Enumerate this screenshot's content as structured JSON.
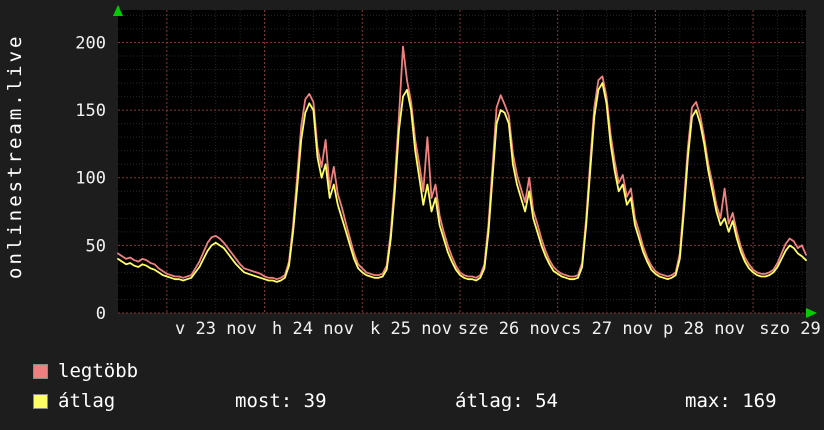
{
  "branding": {
    "vertical_text": "onlinestream.live"
  },
  "colors": {
    "background": "#1d1d1d",
    "plot_background": "#000000",
    "grid_minor": "#272727",
    "grid_major": "#8a3535",
    "text": "#f2f2f2",
    "axis_arrow": "#00cc00",
    "series_max": "#f08080",
    "series_avg": "#ffff66"
  },
  "legend": {
    "items": [
      {
        "label": "legtöbb",
        "color": "#f08080"
      },
      {
        "label": "átlag",
        "color": "#ffff66"
      }
    ],
    "stats": [
      "most: 39",
      "átlag: 54",
      "max: 169"
    ]
  },
  "chart_data": {
    "type": "line",
    "title": "",
    "xlabel": "",
    "ylabel": "",
    "x_range_hours": [
      0,
      169
    ],
    "ylim": [
      0,
      224
    ],
    "y_ticks": [
      0,
      50,
      100,
      150,
      200
    ],
    "x_ticks": [
      {
        "hour": 24,
        "label": "v 23 nov"
      },
      {
        "hour": 48,
        "label": "h 24 nov"
      },
      {
        "hour": 72,
        "label": "k 25 nov"
      },
      {
        "hour": 96,
        "label": "sze 26 nov"
      },
      {
        "hour": 120,
        "label": "cs 27 nov"
      },
      {
        "hour": 144,
        "label": "p 28 nov"
      },
      {
        "hour": 165,
        "label": "szo 29"
      }
    ],
    "x_major_gridlines_hours": [
      12,
      36,
      60,
      84,
      108,
      132,
      156
    ],
    "grid": {
      "minor_y_step": 10,
      "minor_x_step_hours": 6,
      "style": "dotted"
    },
    "legend_position": "bottom-left",
    "stats": {
      "most": 39,
      "atlag": 54,
      "max": 169
    },
    "series": [
      {
        "name": "legtöbb",
        "color": "#f08080",
        "values": [
          44,
          42,
          40,
          41,
          39,
          38,
          40,
          39,
          37,
          36,
          33,
          31,
          29,
          28,
          27,
          27,
          26,
          27,
          28,
          33,
          38,
          45,
          52,
          56,
          57,
          55,
          52,
          48,
          44,
          40,
          36,
          33,
          32,
          31,
          30,
          29,
          27,
          26,
          26,
          25,
          26,
          28,
          38,
          65,
          100,
          138,
          158,
          162,
          156,
          122,
          108,
          128,
          92,
          108,
          88,
          78,
          66,
          55,
          44,
          36,
          33,
          30,
          29,
          28,
          28,
          29,
          35,
          60,
          98,
          145,
          197,
          172,
          156,
          128,
          110,
          90,
          130,
          85,
          95,
          72,
          60,
          50,
          42,
          35,
          30,
          28,
          27,
          27,
          26,
          28,
          36,
          66,
          108,
          152,
          161,
          154,
          146,
          118,
          102,
          92,
          82,
          100,
          76,
          66,
          55,
          46,
          39,
          34,
          31,
          29,
          28,
          27,
          27,
          28,
          37,
          70,
          112,
          152,
          172,
          175,
          160,
          132,
          112,
          96,
          102,
          86,
          92,
          70,
          60,
          49,
          41,
          35,
          31,
          29,
          28,
          27,
          28,
          30,
          44,
          82,
          122,
          152,
          156,
          146,
          130,
          110,
          96,
          80,
          70,
          92,
          66,
          74,
          60,
          49,
          41,
          36,
          32,
          30,
          29,
          29,
          30,
          32,
          37,
          44,
          51,
          55,
          53,
          48,
          50,
          43
        ]
      },
      {
        "name": "átlag",
        "color": "#ffff66",
        "values": [
          40,
          38,
          36,
          37,
          35,
          34,
          36,
          35,
          33,
          32,
          30,
          28,
          27,
          26,
          25,
          25,
          24,
          25,
          26,
          30,
          34,
          40,
          46,
          50,
          52,
          50,
          48,
          44,
          40,
          36,
          33,
          30,
          29,
          28,
          27,
          26,
          25,
          24,
          24,
          23,
          24,
          26,
          35,
          60,
          92,
          128,
          148,
          155,
          150,
          115,
          100,
          110,
          85,
          95,
          80,
          70,
          60,
          50,
          40,
          33,
          30,
          28,
          27,
          26,
          26,
          27,
          32,
          55,
          90,
          135,
          160,
          165,
          150,
          120,
          100,
          80,
          95,
          75,
          85,
          65,
          55,
          45,
          38,
          32,
          28,
          26,
          25,
          25,
          24,
          26,
          33,
          60,
          100,
          140,
          150,
          148,
          140,
          110,
          95,
          85,
          75,
          90,
          70,
          60,
          50,
          42,
          36,
          31,
          29,
          27,
          26,
          25,
          25,
          26,
          34,
          65,
          105,
          145,
          165,
          170,
          155,
          125,
          105,
          90,
          95,
          80,
          85,
          65,
          55,
          45,
          38,
          32,
          29,
          27,
          26,
          25,
          26,
          28,
          40,
          75,
          115,
          145,
          150,
          140,
          125,
          105,
          90,
          75,
          65,
          70,
          60,
          68,
          55,
          45,
          38,
          33,
          30,
          28,
          27,
          27,
          28,
          30,
          34,
          40,
          46,
          50,
          48,
          44,
          42,
          39
        ]
      }
    ]
  }
}
